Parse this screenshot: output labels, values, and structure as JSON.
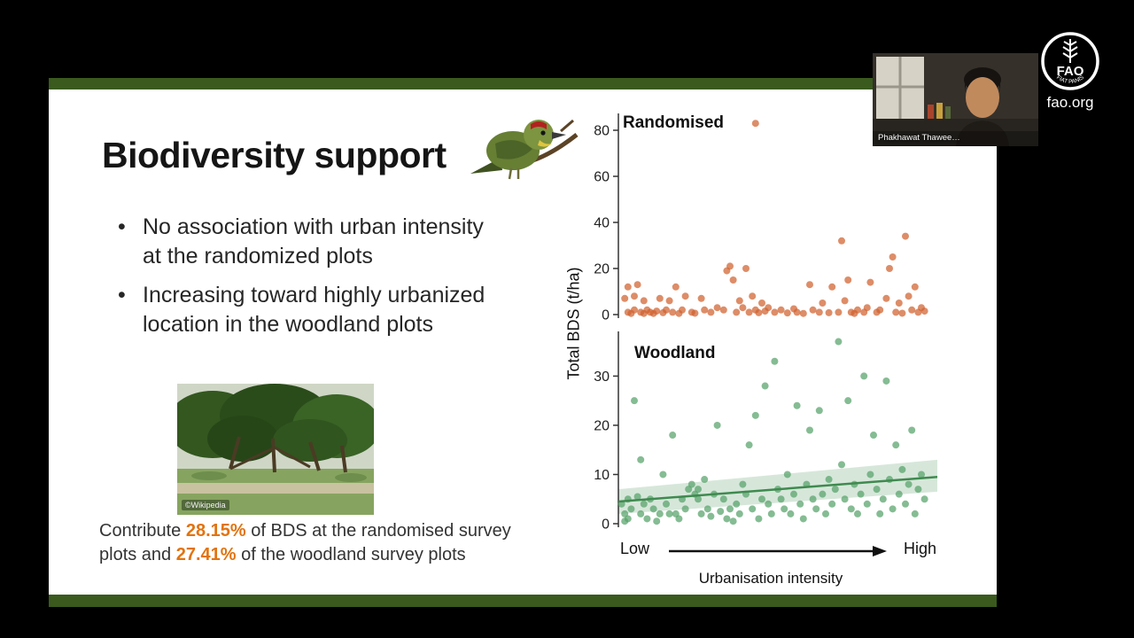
{
  "slide": {
    "title": "Biodiversity support",
    "bullets": [
      "No association with urban intensity at the randomized plots",
      "Increasing toward highly urbanized location in the woodland plots"
    ],
    "photo_credit": "©Wikipedia",
    "contribution": {
      "prefix": "Contribute ",
      "pct_randomised": "28.15%",
      "middle": " of BDS at the randomised survey plots and ",
      "pct_woodland": "27.41%",
      "suffix": " of the woodland survey plots"
    },
    "accent_color": "#e2730f",
    "bar_color": "#3a5a1e"
  },
  "charts": {
    "ylabel": "Total BDS (t/ha)",
    "xlabel": "Urbanisation intensity",
    "x_low_label": "Low",
    "x_high_label": "High"
  },
  "webcam": {
    "name": "Phakhawat Thawee…"
  },
  "branding": {
    "url": "fao.org",
    "logo_text": "FAO",
    "logo_motto": "FIAT PANIS"
  },
  "chart_data": [
    {
      "type": "scatter",
      "title": "Randomised",
      "xlabel": "Urbanisation intensity (Low to High)",
      "ylabel": "Total BDS (t/ha)",
      "x_range": [
        0,
        100
      ],
      "ylim": [
        0,
        85
      ],
      "yticks": [
        0,
        20,
        40,
        60,
        80
      ],
      "grid": false,
      "point_color": "#d0612e",
      "points": [
        [
          2,
          7
        ],
        [
          3,
          12
        ],
        [
          3,
          1
        ],
        [
          4,
          0.5
        ],
        [
          5,
          8
        ],
        [
          5,
          2
        ],
        [
          6,
          13
        ],
        [
          7,
          1
        ],
        [
          8,
          0.5
        ],
        [
          8,
          6
        ],
        [
          9,
          2
        ],
        [
          10,
          1
        ],
        [
          11,
          0.5
        ],
        [
          12,
          1.5
        ],
        [
          13,
          7
        ],
        [
          14,
          0.8
        ],
        [
          15,
          2
        ],
        [
          16,
          6
        ],
        [
          17,
          1
        ],
        [
          18,
          12
        ],
        [
          19,
          0.5
        ],
        [
          20,
          2
        ],
        [
          21,
          8
        ],
        [
          23,
          1
        ],
        [
          24,
          0.6
        ],
        [
          26,
          7
        ],
        [
          27,
          2
        ],
        [
          29,
          1
        ],
        [
          31,
          3
        ],
        [
          33,
          2
        ],
        [
          34,
          19
        ],
        [
          35,
          21
        ],
        [
          36,
          15
        ],
        [
          37,
          1
        ],
        [
          38,
          6
        ],
        [
          39,
          3
        ],
        [
          40,
          20
        ],
        [
          41,
          1
        ],
        [
          42,
          8
        ],
        [
          43,
          83
        ],
        [
          43,
          2
        ],
        [
          44,
          0.8
        ],
        [
          45,
          5
        ],
        [
          46,
          1.5
        ],
        [
          47,
          3
        ],
        [
          49,
          1
        ],
        [
          51,
          2
        ],
        [
          53,
          0.7
        ],
        [
          55,
          2.5
        ],
        [
          56,
          1
        ],
        [
          58,
          0.5
        ],
        [
          60,
          13
        ],
        [
          61,
          2
        ],
        [
          63,
          1
        ],
        [
          64,
          5
        ],
        [
          66,
          0.8
        ],
        [
          67,
          12
        ],
        [
          69,
          1
        ],
        [
          70,
          32
        ],
        [
          71,
          6
        ],
        [
          72,
          15
        ],
        [
          73,
          1
        ],
        [
          74,
          0.5
        ],
        [
          75,
          2
        ],
        [
          77,
          1
        ],
        [
          78,
          3
        ],
        [
          79,
          14
        ],
        [
          81,
          1
        ],
        [
          82,
          2
        ],
        [
          84,
          7
        ],
        [
          85,
          20
        ],
        [
          86,
          25
        ],
        [
          87,
          1
        ],
        [
          88,
          5
        ],
        [
          89,
          0.6
        ],
        [
          90,
          34
        ],
        [
          91,
          8
        ],
        [
          92,
          2
        ],
        [
          93,
          12
        ],
        [
          94,
          1
        ],
        [
          95,
          3
        ],
        [
          96,
          1.5
        ]
      ]
    },
    {
      "type": "scatter",
      "title": "Woodland",
      "xlabel": "Urbanisation intensity (Low to High)",
      "ylabel": "Total BDS (t/ha)",
      "x_range": [
        0,
        100
      ],
      "ylim": [
        0,
        38
      ],
      "yticks": [
        0,
        10,
        20,
        30
      ],
      "grid": false,
      "point_color": "#56a269",
      "points": [
        [
          1,
          4
        ],
        [
          2,
          2
        ],
        [
          2,
          0.5
        ],
        [
          3,
          5
        ],
        [
          3,
          1
        ],
        [
          4,
          3
        ],
        [
          5,
          25
        ],
        [
          6,
          5.5
        ],
        [
          7,
          2
        ],
        [
          7,
          13
        ],
        [
          8,
          4
        ],
        [
          9,
          1
        ],
        [
          10,
          5
        ],
        [
          11,
          3
        ],
        [
          12,
          0.5
        ],
        [
          13,
          2
        ],
        [
          14,
          10
        ],
        [
          15,
          4
        ],
        [
          16,
          2
        ],
        [
          17,
          18
        ],
        [
          18,
          2
        ],
        [
          19,
          1
        ],
        [
          20,
          5
        ],
        [
          21,
          3
        ],
        [
          22,
          7
        ],
        [
          23,
          8
        ],
        [
          24,
          6
        ],
        [
          25,
          7
        ],
        [
          25,
          5
        ],
        [
          26,
          2
        ],
        [
          27,
          9
        ],
        [
          28,
          3
        ],
        [
          29,
          1.5
        ],
        [
          30,
          6
        ],
        [
          31,
          20
        ],
        [
          32,
          2.5
        ],
        [
          33,
          5
        ],
        [
          34,
          1
        ],
        [
          35,
          3
        ],
        [
          36,
          0.5
        ],
        [
          37,
          4
        ],
        [
          38,
          2
        ],
        [
          39,
          8
        ],
        [
          40,
          6
        ],
        [
          41,
          16
        ],
        [
          42,
          3
        ],
        [
          43,
          22
        ],
        [
          44,
          1
        ],
        [
          45,
          5
        ],
        [
          46,
          28
        ],
        [
          47,
          4
        ],
        [
          48,
          2
        ],
        [
          49,
          33
        ],
        [
          50,
          7
        ],
        [
          51,
          5
        ],
        [
          52,
          3
        ],
        [
          53,
          10
        ],
        [
          54,
          2
        ],
        [
          55,
          6
        ],
        [
          56,
          24
        ],
        [
          57,
          4
        ],
        [
          58,
          1
        ],
        [
          59,
          8
        ],
        [
          60,
          19
        ],
        [
          61,
          5
        ],
        [
          62,
          3
        ],
        [
          63,
          23
        ],
        [
          64,
          6
        ],
        [
          65,
          2
        ],
        [
          66,
          9
        ],
        [
          67,
          4
        ],
        [
          68,
          7
        ],
        [
          69,
          37
        ],
        [
          70,
          12
        ],
        [
          71,
          5
        ],
        [
          72,
          25
        ],
        [
          73,
          3
        ],
        [
          74,
          8
        ],
        [
          75,
          2
        ],
        [
          76,
          6
        ],
        [
          77,
          30
        ],
        [
          78,
          4
        ],
        [
          79,
          10
        ],
        [
          80,
          18
        ],
        [
          81,
          7
        ],
        [
          82,
          2
        ],
        [
          83,
          5
        ],
        [
          84,
          29
        ],
        [
          85,
          9
        ],
        [
          86,
          3
        ],
        [
          87,
          16
        ],
        [
          88,
          6
        ],
        [
          89,
          11
        ],
        [
          90,
          4
        ],
        [
          91,
          8
        ],
        [
          92,
          19
        ],
        [
          93,
          2
        ],
        [
          94,
          7
        ],
        [
          95,
          10
        ],
        [
          96,
          5
        ]
      ],
      "trend": {
        "x": [
          0,
          100
        ],
        "y": [
          4.5,
          9.5
        ],
        "upper": [
          7,
          13
        ],
        "lower": [
          2,
          6.5
        ],
        "line_color": "#3f8a4f",
        "band_color": "rgba(91,161,107,0.25)"
      }
    }
  ]
}
